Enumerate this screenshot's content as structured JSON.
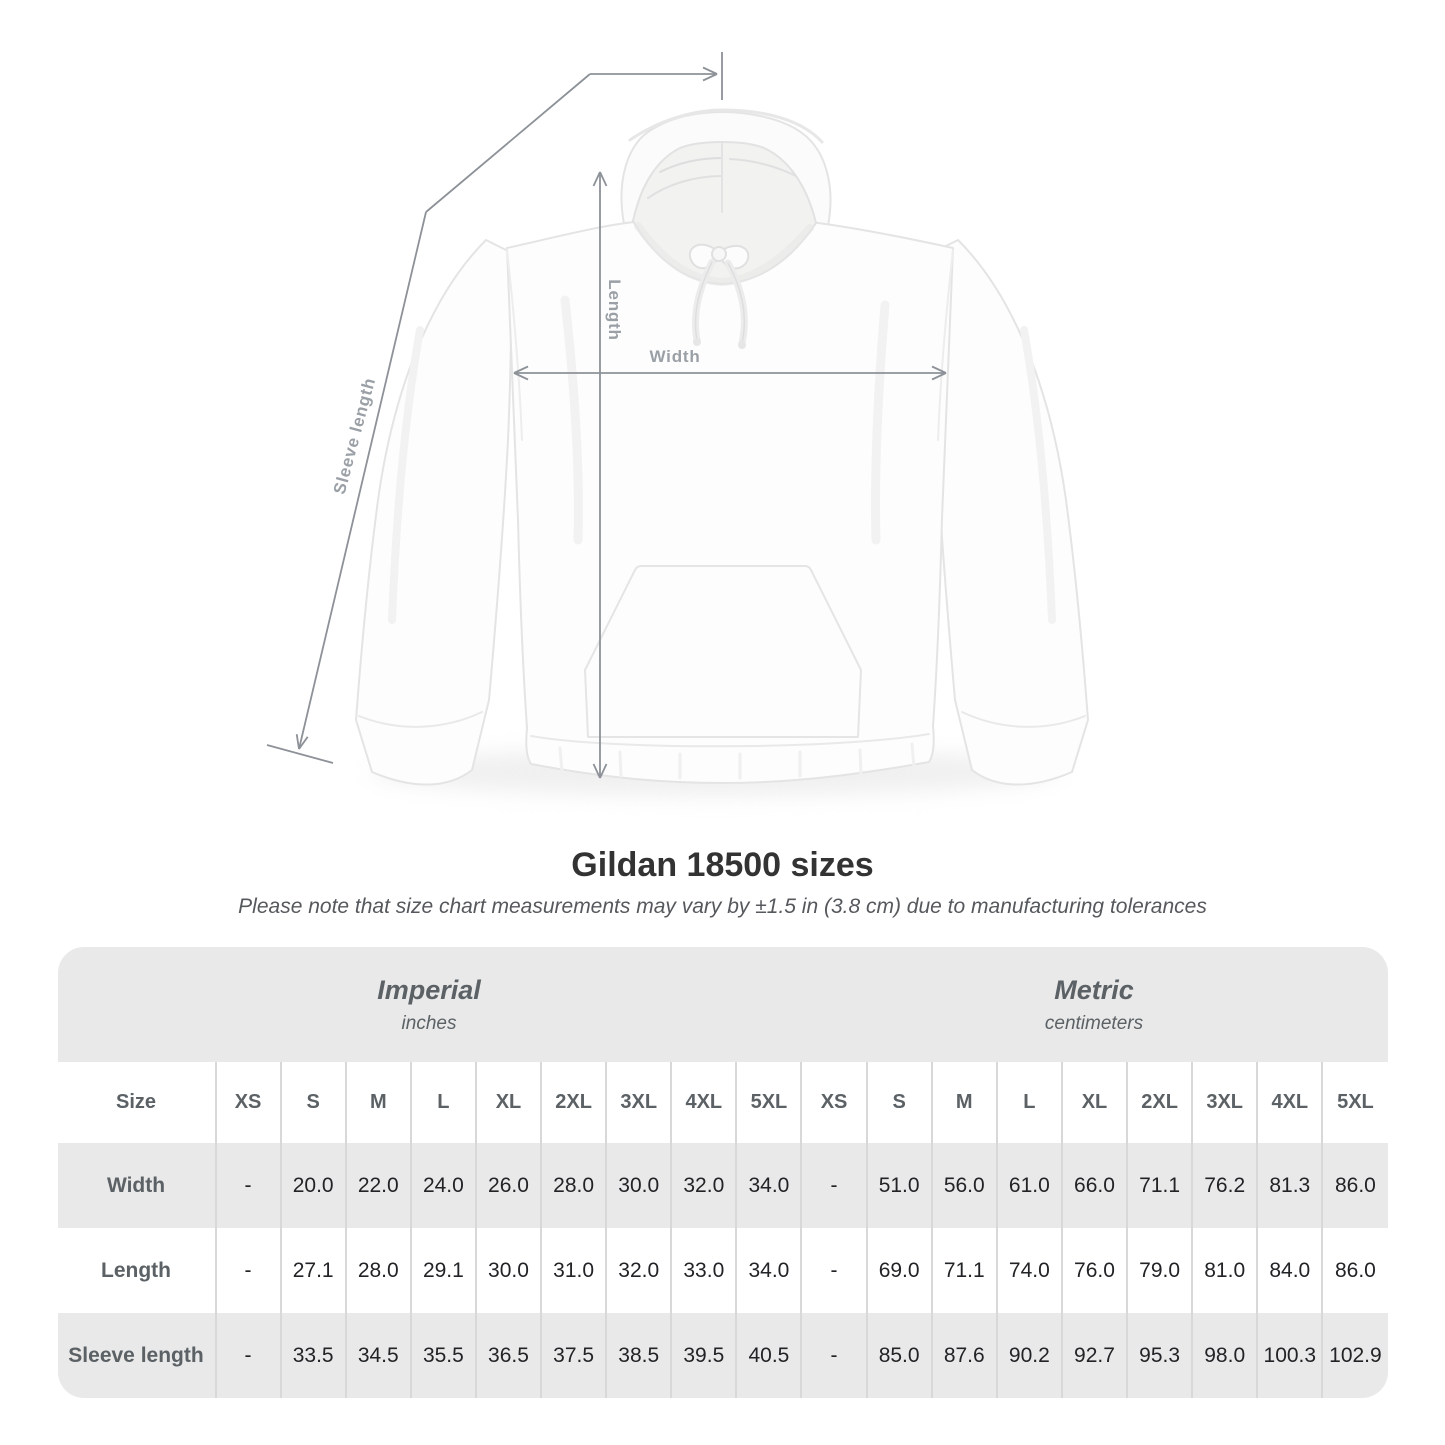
{
  "diagram": {
    "labels": {
      "length": "Length",
      "width": "Width",
      "sleeve_length": "Sleeve length"
    },
    "line_color": "#8d9298",
    "label_color": "#9aa0a6"
  },
  "chart_data": {
    "type": "table",
    "title": "Gildan 18500 sizes",
    "subtitle": "Please note that size chart measurements may vary by ±1.5 in (3.8 cm) due to manufacturing tolerances",
    "corner_label": "Size",
    "groups": [
      {
        "label": "Imperial",
        "unit": "inches"
      },
      {
        "label": "Metric",
        "unit": "centimeters"
      }
    ],
    "size_columns": [
      "XS",
      "S",
      "M",
      "L",
      "XL",
      "2XL",
      "3XL",
      "4XL",
      "5XL"
    ],
    "rows": [
      {
        "label": "Width",
        "imperial": [
          "-",
          "20.0",
          "22.0",
          "24.0",
          "26.0",
          "28.0",
          "30.0",
          "32.0",
          "34.0"
        ],
        "metric": [
          "-",
          "51.0",
          "56.0",
          "61.0",
          "66.0",
          "71.1",
          "76.2",
          "81.3",
          "86.0"
        ]
      },
      {
        "label": "Length",
        "imperial": [
          "-",
          "27.1",
          "28.0",
          "29.1",
          "30.0",
          "31.0",
          "32.0",
          "33.0",
          "34.0"
        ],
        "metric": [
          "-",
          "69.0",
          "71.1",
          "74.0",
          "76.0",
          "79.0",
          "81.0",
          "84.0",
          "86.0"
        ]
      },
      {
        "label": "Sleeve length",
        "imperial": [
          "-",
          "33.5",
          "34.5",
          "35.5",
          "36.5",
          "37.5",
          "38.5",
          "39.5",
          "40.5"
        ],
        "metric": [
          "-",
          "85.0",
          "87.6",
          "90.2",
          "92.7",
          "95.3",
          "98.0",
          "100.3",
          "102.9"
        ]
      }
    ],
    "layout": {
      "shaded_row_bg": "#e9e9e9",
      "separator_color": "#d8d8d8",
      "header_text_color": "#5b6165",
      "cell_text_color": "#222326"
    }
  }
}
